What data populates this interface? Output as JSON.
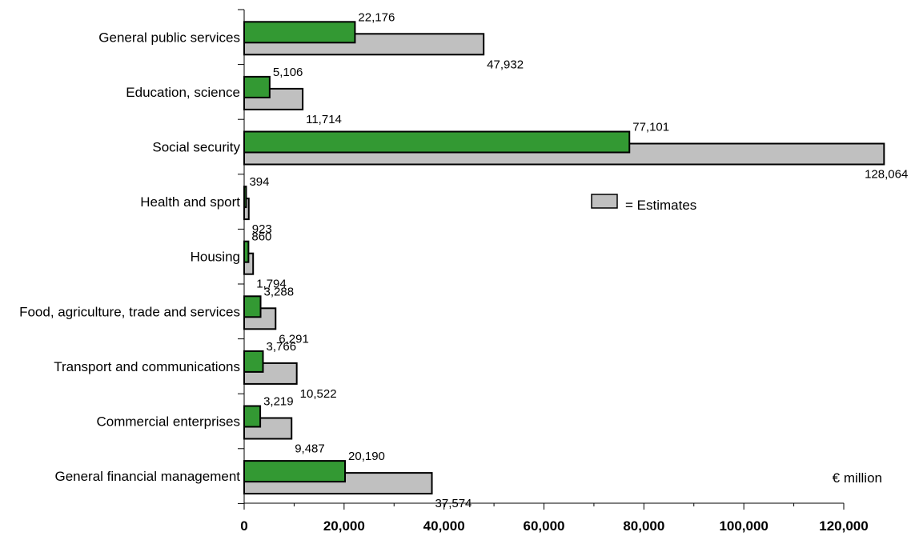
{
  "chart_data": {
    "type": "bar",
    "orientation": "horizontal",
    "categories": [
      "General public services",
      "Education, science",
      "Social security",
      "Health and sport",
      "Housing",
      "Food, agriculture, trade and services",
      "Transport and communications",
      "Commercial enterprises",
      "General financial management"
    ],
    "series": [
      {
        "values": [
          22176,
          5106,
          77101,
          394,
          860,
          3288,
          3766,
          3219,
          20190
        ],
        "labels": [
          "22,176",
          "5,106",
          "77,101",
          "394",
          "860",
          "3,288",
          "3,766",
          "3,219",
          "20,190"
        ],
        "color": "#339933"
      },
      {
        "name": "= Estimates",
        "values": [
          47932,
          11714,
          128064,
          923,
          1794,
          6291,
          10522,
          9487,
          37574
        ],
        "labels": [
          "47,932",
          "11,714",
          "128,064",
          "923",
          "1,794",
          "6,291",
          "10,522",
          "9,487",
          "37,574"
        ],
        "color": "#c0c0c0"
      }
    ],
    "xlim": [
      0,
      120000
    ],
    "xticks": [
      0,
      20000,
      40000,
      60000,
      80000,
      100000,
      120000
    ],
    "xtick_labels": [
      "0",
      "20,000",
      "40,000",
      "60,000",
      "80,000",
      "100,000",
      "120,000"
    ],
    "unit_label": "€ million",
    "legend": {
      "label": "= Estimates",
      "position": "right"
    },
    "grid": false
  }
}
